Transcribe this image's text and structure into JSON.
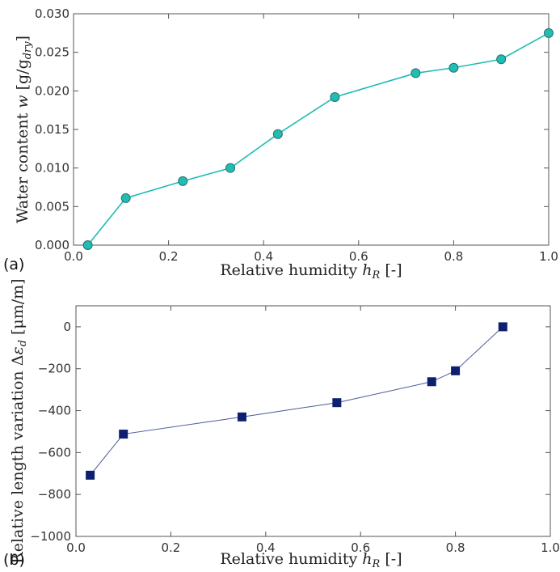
{
  "chart_data": [
    {
      "type": "line",
      "panel_label": "(a)",
      "xlabel": "Relative  humidity h_R [-]",
      "xlabel_parts": {
        "main": "Relative  humidity ",
        "var": "h",
        "sub": "R",
        "tail": " [-]"
      },
      "ylabel": "Water  content w  [g/g_dry]",
      "ylabel_parts": {
        "main": "Water  content ",
        "var": "w",
        "unit_open": "  [g/g",
        "sub": "dry",
        "unit_close": "]"
      },
      "xlim": [
        0.0,
        1.0
      ],
      "ylim": [
        0.0,
        0.03
      ],
      "xticks": [
        "0.0",
        "0.2",
        "0.4",
        "0.6",
        "0.8",
        "1.0"
      ],
      "yticks": [
        "0.000",
        "0.005",
        "0.010",
        "0.015",
        "0.020",
        "0.025",
        "0.030"
      ],
      "grid": false,
      "series": [
        {
          "marker": "circle",
          "color": "#1fbdb4",
          "marker_stroke": "#2a6e6a",
          "x": [
            0.03,
            0.11,
            0.23,
            0.33,
            0.43,
            0.55,
            0.72,
            0.8,
            0.9,
            1.0
          ],
          "y": [
            0.0,
            0.0061,
            0.0083,
            0.01,
            0.0144,
            0.0192,
            0.0223,
            0.023,
            0.0241,
            0.0275
          ]
        }
      ]
    },
    {
      "type": "line",
      "panel_label": "(b)",
      "xlabel": "Relative  humidity h_R [-]",
      "xlabel_parts": {
        "main": "Relative  humidity ",
        "var": "h",
        "sub": "R",
        "tail": " [-]"
      },
      "ylabel": "Relative  length variation Δε_d [μm/m]",
      "ylabel_parts": {
        "main": "Relative  length variation Δ",
        "var": "ε",
        "sub": "d",
        "tail": " [μm/m]"
      },
      "xlim": [
        0.0,
        1.0
      ],
      "ylim": [
        -1000,
        100
      ],
      "xticks": [
        "0.0",
        "0.2",
        "0.4",
        "0.6",
        "0.8",
        "1.0"
      ],
      "yticks": [
        "−1000",
        "−800",
        "−600",
        "−400",
        "−200",
        "0"
      ],
      "grid": false,
      "series": [
        {
          "marker": "square",
          "color": "#0d1f6e",
          "line_color": "#4b5a9a",
          "x": [
            0.03,
            0.1,
            0.35,
            0.55,
            0.75,
            0.8,
            0.9
          ],
          "y": [
            -708,
            -512,
            -430,
            -362,
            -262,
            -210,
            0
          ]
        }
      ]
    }
  ]
}
